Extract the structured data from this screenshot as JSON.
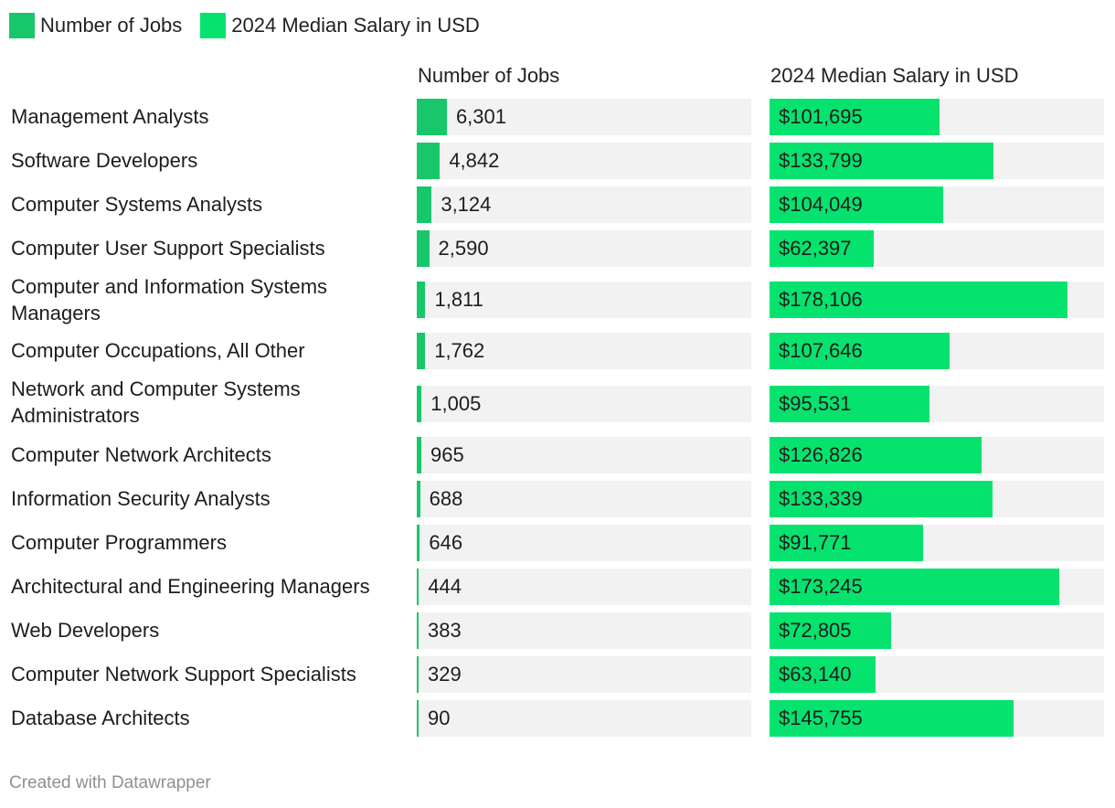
{
  "legend": [
    {
      "label": "Number of Jobs",
      "color": "#17c76a"
    },
    {
      "label": "2024 Median Salary in USD",
      "color": "#05e36e"
    }
  ],
  "columns": {
    "jobs_header": "Number of Jobs",
    "salary_header": "2024 Median Salary in USD"
  },
  "footer": "Created with Datawrapper",
  "chart_data": {
    "type": "bar",
    "title": "",
    "categories": [
      "Management Analysts",
      "Software Developers",
      "Computer Systems Analysts",
      "Computer User Support Specialists",
      "Computer and Information Systems Managers",
      "Computer Occupations, All Other",
      "Network and Computer Systems Administrators",
      "Computer Network Architects",
      "Information Security Analysts",
      "Computer Programmers",
      "Architectural and Engineering Managers",
      "Web Developers",
      "Computer Network Support Specialists",
      "Database Architects"
    ],
    "series": [
      {
        "name": "Number of Jobs",
        "color": "#17c76a",
        "max": 70000,
        "values": [
          6301,
          4842,
          3124,
          2590,
          1811,
          1762,
          1005,
          965,
          688,
          646,
          444,
          383,
          329,
          90
        ],
        "labels": [
          "6,301",
          "4,842",
          "3,124",
          "2,590",
          "1,811",
          "1,762",
          "1,005",
          "965",
          "688",
          "646",
          "444",
          "383",
          "329",
          "90"
        ]
      },
      {
        "name": "2024 Median Salary in USD",
        "color": "#05e36e",
        "max": 200000,
        "values": [
          101695,
          133799,
          104049,
          62397,
          178106,
          107646,
          95531,
          126826,
          133339,
          91771,
          173245,
          72805,
          63140,
          145755
        ],
        "labels": [
          "$101,695",
          "$133,799",
          "$104,049",
          "$62,397",
          "$178,106",
          "$107,646",
          "$95,531",
          "$126,826",
          "$133,339",
          "$91,771",
          "$173,245",
          "$72,805",
          "$63,140",
          "$145,755"
        ]
      }
    ]
  }
}
